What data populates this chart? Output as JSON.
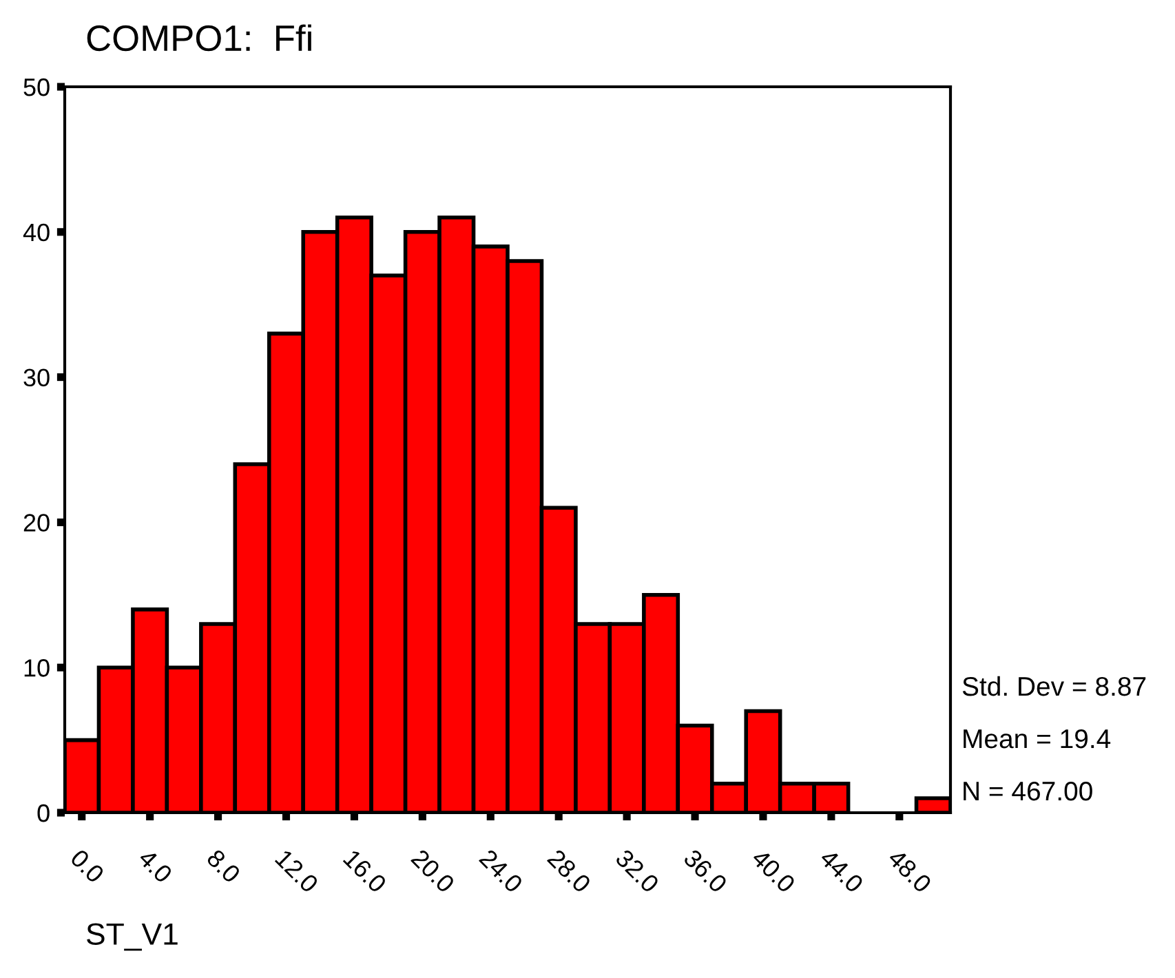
{
  "chart_data": {
    "type": "histogram",
    "title": "COMPO1:  Ffi",
    "xlabel": "ST_V1",
    "bins": [
      -1,
      1,
      3,
      5,
      7,
      9,
      11,
      13,
      15,
      17,
      19,
      21,
      23,
      25,
      27,
      29,
      31,
      33,
      35,
      37,
      39,
      41,
      43,
      45,
      47,
      49,
      51
    ],
    "values": [
      5,
      10,
      14,
      10,
      13,
      24,
      33,
      40,
      41,
      37,
      40,
      41,
      39,
      38,
      21,
      13,
      13,
      15,
      6,
      2,
      7,
      2,
      2,
      0,
      0,
      1
    ],
    "color": "#ff0000",
    "xlim": [
      -1,
      51
    ],
    "xticks": [
      {
        "value": 0,
        "label": "0.0"
      },
      {
        "value": 4,
        "label": "4.0"
      },
      {
        "value": 8,
        "label": "8.0"
      },
      {
        "value": 12,
        "label": "12.0"
      },
      {
        "value": 16,
        "label": "16.0"
      },
      {
        "value": 20,
        "label": "20.0"
      },
      {
        "value": 24,
        "label": "24.0"
      },
      {
        "value": 28,
        "label": "28.0"
      },
      {
        "value": 32,
        "label": "32.0"
      },
      {
        "value": 36,
        "label": "36.0"
      },
      {
        "value": 40,
        "label": "40.0"
      },
      {
        "value": 44,
        "label": "44.0"
      },
      {
        "value": 48,
        "label": "48.0"
      }
    ],
    "ylim": [
      0,
      50
    ],
    "yticks": [
      0,
      10,
      20,
      30,
      40,
      50
    ],
    "grid": false,
    "annotations": [
      "Std. Dev = 8.87",
      "Mean = 19.4",
      "N = 467.00"
    ]
  }
}
